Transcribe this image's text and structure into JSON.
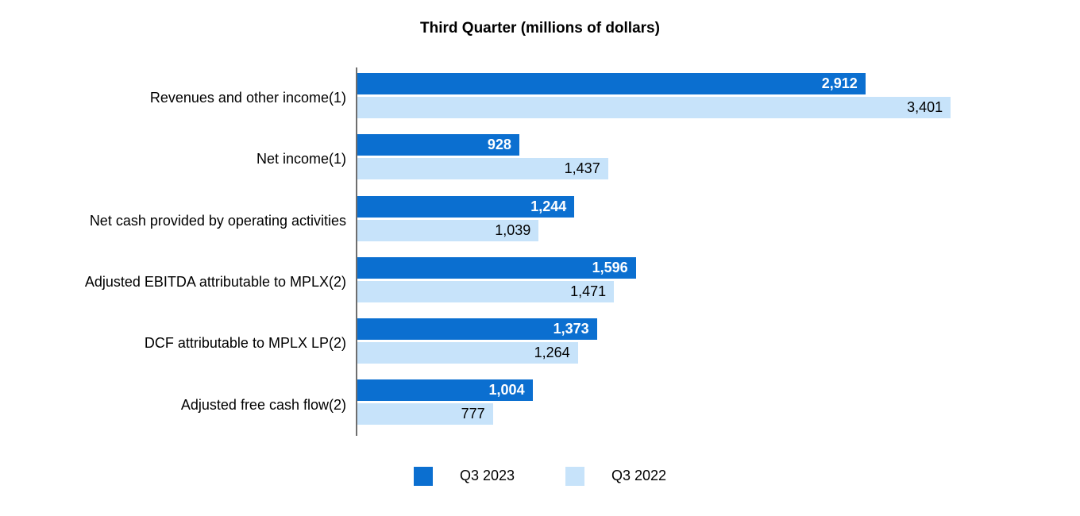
{
  "title": "Third Quarter (millions of dollars)",
  "chart_data": {
    "type": "bar",
    "orientation": "horizontal",
    "title": "Third Quarter (millions of dollars)",
    "categories": [
      "Revenues and other income(1)",
      "Net income(1)",
      "Net cash provided by operating activities",
      "Adjusted EBITDA attributable to MPLX(2)",
      "DCF attributable to MPLX LP(2)",
      "Adjusted free cash flow(2)"
    ],
    "series": [
      {
        "name": "Q3 2023",
        "color": "#0b6fd0",
        "values": [
          2912,
          928,
          1244,
          1596,
          1373,
          1004
        ],
        "display_values": [
          "2,912",
          "928",
          "1,244",
          "1,596",
          "1,373",
          "1,004"
        ]
      },
      {
        "name": "Q3 2022",
        "color": "#c7e3fa",
        "values": [
          3401,
          1437,
          1039,
          1471,
          1264,
          777
        ],
        "display_values": [
          "3,401",
          "1,437",
          "1,039",
          "1,471",
          "1,264",
          "777"
        ]
      }
    ],
    "xlabel": "",
    "ylabel": "",
    "xlim": [
      0,
      4142
    ],
    "grid": false,
    "value_labels": "inside-end",
    "legend_position": "bottom",
    "axis_color": "#6e6e6e",
    "label_colors": {
      "q3_2023": "#ffffff",
      "q3_2022": "#000000"
    }
  },
  "legend": {
    "items": [
      {
        "label": "Q3 2023",
        "color": "#0b6fd0"
      },
      {
        "label": "Q3 2022",
        "color": "#c7e3fa"
      }
    ]
  }
}
